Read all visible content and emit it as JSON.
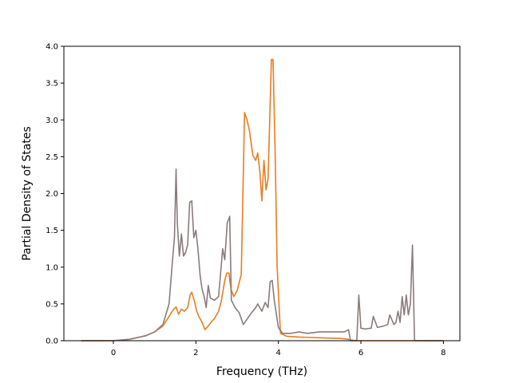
{
  "chart_data": {
    "type": "line",
    "title": "",
    "xlabel": "Frequency (THz)",
    "ylabel": "Partial Density of States",
    "xlim": [
      -1.2,
      8.4
    ],
    "ylim": [
      0.0,
      4.0
    ],
    "xticks": [
      0,
      2,
      4,
      6,
      8
    ],
    "xtick_labels": [
      "0",
      "2",
      "4",
      "6",
      "8"
    ],
    "yticks": [
      0.0,
      0.5,
      1.0,
      1.5,
      2.0,
      2.5,
      3.0,
      3.5,
      4.0
    ],
    "ytick_labels": [
      "0.0",
      "0.5",
      "1.0",
      "1.5",
      "2.0",
      "2.5",
      "3.0",
      "3.5",
      "4.0"
    ],
    "grid": false,
    "legend": "none",
    "series": [
      {
        "color": "#e67e22",
        "x": [
          -0.78,
          0.0,
          0.4,
          0.8,
          1.0,
          1.2,
          1.35,
          1.45,
          1.52,
          1.58,
          1.65,
          1.72,
          1.8,
          1.86,
          1.9,
          1.96,
          2.02,
          2.08,
          2.15,
          2.22,
          2.3,
          2.38,
          2.45,
          2.55,
          2.62,
          2.7,
          2.75,
          2.8,
          2.85,
          2.92,
          3.0,
          3.1,
          3.18,
          3.24,
          3.3,
          3.38,
          3.45,
          3.5,
          3.55,
          3.6,
          3.65,
          3.7,
          3.75,
          3.8,
          3.83,
          3.87,
          3.92,
          3.97,
          4.05,
          4.2,
          4.5,
          5.0,
          5.5,
          5.7,
          5.74,
          5.9,
          6.0,
          6.5,
          7.0,
          7.27,
          7.3,
          8.0
        ],
        "y": [
          0.0,
          0.0,
          0.02,
          0.07,
          0.12,
          0.2,
          0.33,
          0.42,
          0.46,
          0.36,
          0.43,
          0.4,
          0.45,
          0.62,
          0.66,
          0.55,
          0.4,
          0.32,
          0.25,
          0.15,
          0.2,
          0.26,
          0.3,
          0.4,
          0.55,
          0.82,
          0.92,
          0.92,
          0.7,
          0.6,
          0.68,
          0.9,
          3.1,
          3.0,
          2.85,
          2.52,
          2.45,
          2.55,
          2.3,
          1.9,
          2.45,
          2.05,
          2.2,
          3.2,
          3.82,
          3.82,
          2.6,
          1.0,
          0.1,
          0.06,
          0.05,
          0.04,
          0.03,
          0.02,
          0.01,
          0.0,
          0.0,
          0.0,
          0.0,
          0.0,
          0.0,
          0.0
        ]
      },
      {
        "color": "#8c7b7b",
        "x": [
          -0.78,
          0.0,
          0.4,
          0.8,
          1.0,
          1.2,
          1.35,
          1.42,
          1.48,
          1.52,
          1.55,
          1.6,
          1.65,
          1.7,
          1.75,
          1.8,
          1.85,
          1.9,
          1.95,
          2.0,
          2.05,
          2.1,
          2.15,
          2.2,
          2.25,
          2.3,
          2.35,
          2.45,
          2.55,
          2.65,
          2.7,
          2.76,
          2.82,
          2.86,
          2.95,
          3.05,
          3.15,
          3.25,
          3.35,
          3.45,
          3.5,
          3.6,
          3.68,
          3.75,
          3.8,
          3.85,
          3.9,
          4.0,
          4.1,
          4.3,
          4.5,
          4.7,
          5.0,
          5.3,
          5.6,
          5.7,
          5.75,
          5.9,
          5.95,
          6.0,
          6.1,
          6.25,
          6.3,
          6.4,
          6.55,
          6.65,
          6.7,
          6.8,
          6.85,
          6.9,
          6.95,
          7.0,
          7.05,
          7.1,
          7.15,
          7.2,
          7.25,
          7.3,
          8.0
        ],
        "y": [
          0.0,
          0.0,
          0.02,
          0.07,
          0.12,
          0.22,
          0.5,
          1.0,
          1.4,
          2.33,
          1.6,
          1.15,
          1.45,
          1.15,
          1.2,
          1.3,
          1.88,
          1.9,
          1.4,
          1.5,
          1.25,
          0.9,
          0.7,
          0.6,
          0.45,
          0.75,
          0.58,
          0.55,
          0.6,
          1.25,
          1.1,
          1.6,
          1.69,
          0.55,
          0.45,
          0.38,
          0.22,
          0.3,
          0.38,
          0.45,
          0.5,
          0.4,
          0.52,
          0.45,
          0.8,
          0.82,
          0.55,
          0.18,
          0.1,
          0.1,
          0.12,
          0.1,
          0.12,
          0.12,
          0.12,
          0.15,
          0.0,
          0.0,
          0.62,
          0.17,
          0.16,
          0.17,
          0.33,
          0.18,
          0.2,
          0.22,
          0.35,
          0.22,
          0.25,
          0.4,
          0.25,
          0.6,
          0.35,
          0.62,
          0.35,
          0.5,
          1.3,
          0.0,
          0.0
        ]
      }
    ]
  }
}
